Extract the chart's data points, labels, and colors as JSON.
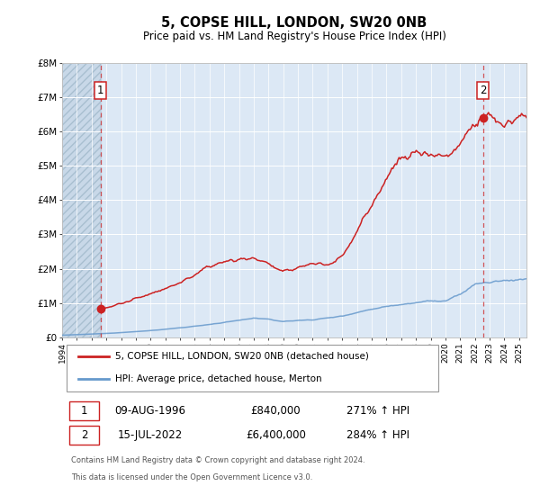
{
  "title": "5, COPSE HILL, LONDON, SW20 0NB",
  "subtitle": "Price paid vs. HM Land Registry's House Price Index (HPI)",
  "plot_bg_color": "#dce8f5",
  "hatch_bg_color": "#c8d8e8",
  "red_color": "#cc2222",
  "blue_color": "#6699cc",
  "ylim": [
    0,
    8000000
  ],
  "yticks": [
    0,
    1000000,
    2000000,
    3000000,
    4000000,
    5000000,
    6000000,
    7000000,
    8000000
  ],
  "ytick_labels": [
    "£0",
    "£1M",
    "£2M",
    "£3M",
    "£4M",
    "£5M",
    "£6M",
    "£7M",
    "£8M"
  ],
  "xlim_start": 1994.0,
  "xlim_end": 2025.5,
  "hatch_end": 1996.6,
  "sale1_x": 1996.6,
  "sale1_y": 840000,
  "sale1_label": "1",
  "sale1_date": "09-AUG-1996",
  "sale1_price": "£840,000",
  "sale1_hpi": "271% ↑ HPI",
  "sale2_x": 2022.54,
  "sale2_y": 6400000,
  "sale2_label": "2",
  "sale2_date": "15-JUL-2022",
  "sale2_price": "£6,400,000",
  "sale2_hpi": "284% ↑ HPI",
  "legend_line1": "5, COPSE HILL, LONDON, SW20 0NB (detached house)",
  "legend_line2": "HPI: Average price, detached house, Merton",
  "footer1": "Contains HM Land Registry data © Crown copyright and database right 2024.",
  "footer2": "This data is licensed under the Open Government Licence v3.0."
}
